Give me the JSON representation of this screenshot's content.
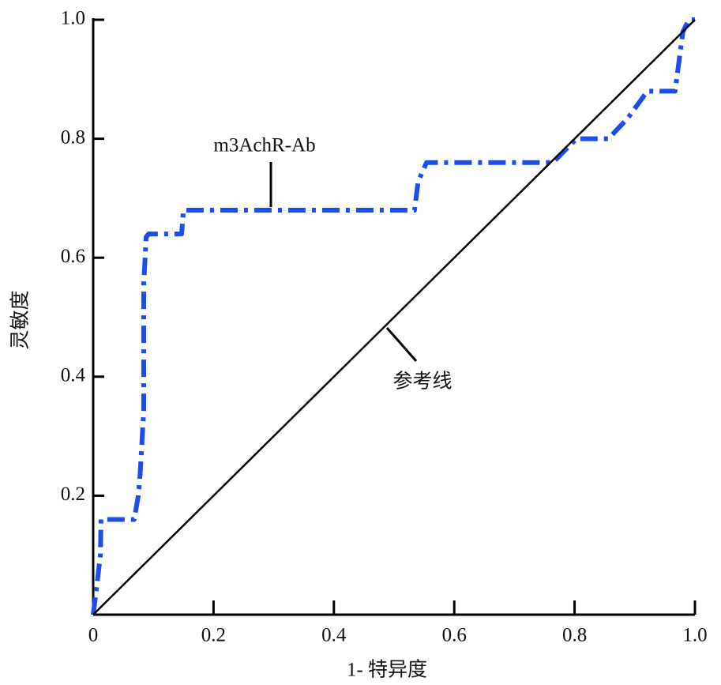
{
  "chart_data": {
    "type": "line",
    "xlabel": "1- 特异度",
    "ylabel": "灵敏度",
    "xlim": [
      0,
      1
    ],
    "ylim": [
      0,
      1
    ],
    "xticks": [
      0,
      0.2,
      0.4,
      0.6,
      0.8,
      {
        "value": 1,
        "label": "1.0"
      }
    ],
    "yticks": [
      0.2,
      0.4,
      0.6,
      0.8,
      {
        "value": 1,
        "label": "1.0"
      }
    ],
    "series": [
      {
        "name": "m3AchR-Ab",
        "color": "#1a4cf0",
        "style": "dashdot",
        "x": [
          0,
          0.005,
          0.012,
          0.013,
          0.068,
          0.075,
          0.078,
          0.084,
          0.084,
          0.088,
          0.092,
          0.147,
          0.15,
          0.534,
          0.54,
          0.554,
          0.764,
          0.803,
          0.856,
          0.888,
          0.921,
          0.967,
          0.98,
          0.99,
          1
        ],
        "values": [
          0,
          0.04,
          0.1,
          0.16,
          0.16,
          0.2,
          0.236,
          0.343,
          0.555,
          0.635,
          0.64,
          0.64,
          0.68,
          0.68,
          0.728,
          0.76,
          0.76,
          0.8,
          0.8,
          0.834,
          0.88,
          0.88,
          0.98,
          1,
          1
        ]
      },
      {
        "name": "参考线",
        "color": "#000000",
        "style": "solid",
        "x": [
          0,
          1
        ],
        "values": [
          0,
          1
        ]
      }
    ]
  }
}
